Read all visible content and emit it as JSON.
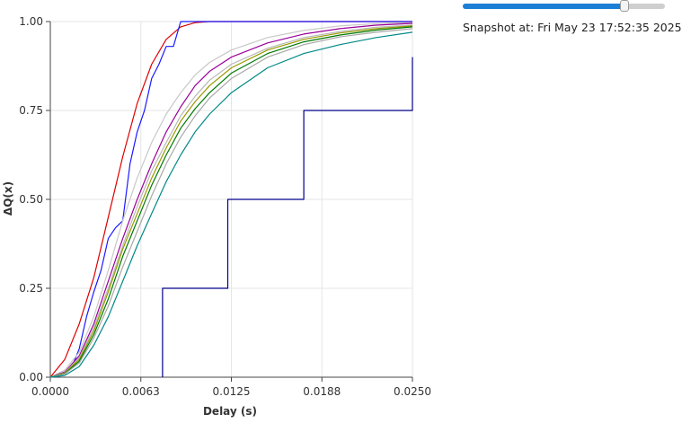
{
  "snapshot": {
    "text": "Snapshot at: Fri May 23 17:52:35 2025",
    "slider_value": 0.8
  },
  "chart_data": {
    "type": "line",
    "title": "",
    "xlabel": "Delay (s)",
    "ylabel": "ΔQ(x)",
    "xlim": [
      0,
      0.025
    ],
    "ylim": [
      0,
      1
    ],
    "x_ticks": [
      0,
      0.00625,
      0.0125,
      0.01875,
      0.025
    ],
    "x_tick_labels": [
      "0.0000",
      "0.0063",
      "0.0125",
      "0.0188",
      "0.0250"
    ],
    "y_ticks": [
      0,
      0.25,
      0.5,
      0.75,
      1
    ],
    "y_tick_labels": [
      "0.00",
      "0.25",
      "0.50",
      "0.75",
      "1.00"
    ],
    "grid": true,
    "series": [
      {
        "color": "#dd0000",
        "step": false,
        "points": [
          [
            0,
            0
          ],
          [
            0.001,
            0.05
          ],
          [
            0.002,
            0.15
          ],
          [
            0.003,
            0.28
          ],
          [
            0.004,
            0.45
          ],
          [
            0.005,
            0.62
          ],
          [
            0.006,
            0.77
          ],
          [
            0.007,
            0.88
          ],
          [
            0.008,
            0.95
          ],
          [
            0.009,
            0.985
          ],
          [
            0.01,
            0.997
          ],
          [
            0.011,
            1
          ],
          [
            0.025,
            1
          ]
        ]
      },
      {
        "color": "#1a1aff",
        "step": false,
        "points": [
          [
            0,
            0
          ],
          [
            0.001,
            0.01
          ],
          [
            0.0015,
            0.03
          ],
          [
            0.002,
            0.08
          ],
          [
            0.0025,
            0.17
          ],
          [
            0.003,
            0.24
          ],
          [
            0.0035,
            0.3
          ],
          [
            0.004,
            0.39
          ],
          [
            0.0045,
            0.42
          ],
          [
            0.005,
            0.44
          ],
          [
            0.0055,
            0.6
          ],
          [
            0.006,
            0.69
          ],
          [
            0.0065,
            0.75
          ],
          [
            0.007,
            0.84
          ],
          [
            0.0075,
            0.88
          ],
          [
            0.008,
            0.93
          ],
          [
            0.0085,
            0.93
          ],
          [
            0.009,
            1
          ],
          [
            0.025,
            1
          ]
        ]
      },
      {
        "color": "#c8c8c8",
        "step": false,
        "points": [
          [
            0,
            0
          ],
          [
            0.001,
            0.02
          ],
          [
            0.002,
            0.07
          ],
          [
            0.003,
            0.17
          ],
          [
            0.004,
            0.3
          ],
          [
            0.005,
            0.44
          ],
          [
            0.006,
            0.56
          ],
          [
            0.007,
            0.66
          ],
          [
            0.008,
            0.74
          ],
          [
            0.009,
            0.8
          ],
          [
            0.01,
            0.85
          ],
          [
            0.011,
            0.885
          ],
          [
            0.0125,
            0.92
          ],
          [
            0.015,
            0.955
          ],
          [
            0.0175,
            0.975
          ],
          [
            0.02,
            0.988
          ],
          [
            0.0225,
            0.994
          ],
          [
            0.025,
            0.997
          ]
        ]
      },
      {
        "color": "#9a009a",
        "step": false,
        "points": [
          [
            0,
            0
          ],
          [
            0.001,
            0.015
          ],
          [
            0.002,
            0.06
          ],
          [
            0.003,
            0.15
          ],
          [
            0.004,
            0.27
          ],
          [
            0.005,
            0.39
          ],
          [
            0.006,
            0.5
          ],
          [
            0.007,
            0.6
          ],
          [
            0.008,
            0.69
          ],
          [
            0.009,
            0.76
          ],
          [
            0.01,
            0.82
          ],
          [
            0.011,
            0.86
          ],
          [
            0.0125,
            0.9
          ],
          [
            0.015,
            0.94
          ],
          [
            0.0175,
            0.965
          ],
          [
            0.02,
            0.98
          ],
          [
            0.0225,
            0.99
          ],
          [
            0.025,
            0.995
          ]
        ]
      },
      {
        "color": "#b8b8b8",
        "step": false,
        "points": [
          [
            0,
            0
          ],
          [
            0.001,
            0.013
          ],
          [
            0.002,
            0.055
          ],
          [
            0.003,
            0.14
          ],
          [
            0.004,
            0.25
          ],
          [
            0.005,
            0.37
          ],
          [
            0.006,
            0.48
          ],
          [
            0.007,
            0.58
          ],
          [
            0.008,
            0.66
          ],
          [
            0.009,
            0.735
          ],
          [
            0.01,
            0.79
          ],
          [
            0.011,
            0.835
          ],
          [
            0.0125,
            0.88
          ],
          [
            0.015,
            0.925
          ],
          [
            0.0175,
            0.955
          ],
          [
            0.02,
            0.972
          ],
          [
            0.0225,
            0.984
          ],
          [
            0.025,
            0.99
          ]
        ]
      },
      {
        "color": "#999900",
        "step": false,
        "points": [
          [
            0,
            0
          ],
          [
            0.001,
            0.012
          ],
          [
            0.002,
            0.05
          ],
          [
            0.003,
            0.13
          ],
          [
            0.004,
            0.24
          ],
          [
            0.005,
            0.36
          ],
          [
            0.006,
            0.46
          ],
          [
            0.007,
            0.56
          ],
          [
            0.008,
            0.645
          ],
          [
            0.009,
            0.72
          ],
          [
            0.01,
            0.775
          ],
          [
            0.011,
            0.82
          ],
          [
            0.0125,
            0.87
          ],
          [
            0.015,
            0.92
          ],
          [
            0.0175,
            0.95
          ],
          [
            0.02,
            0.968
          ],
          [
            0.0225,
            0.98
          ],
          [
            0.025,
            0.988
          ]
        ]
      },
      {
        "color": "#007700",
        "step": false,
        "points": [
          [
            0,
            0
          ],
          [
            0.001,
            0.01
          ],
          [
            0.002,
            0.045
          ],
          [
            0.003,
            0.12
          ],
          [
            0.004,
            0.22
          ],
          [
            0.005,
            0.34
          ],
          [
            0.006,
            0.44
          ],
          [
            0.007,
            0.54
          ],
          [
            0.008,
            0.625
          ],
          [
            0.009,
            0.7
          ],
          [
            0.01,
            0.755
          ],
          [
            0.011,
            0.8
          ],
          [
            0.0125,
            0.855
          ],
          [
            0.015,
            0.91
          ],
          [
            0.0175,
            0.943
          ],
          [
            0.02,
            0.962
          ],
          [
            0.0225,
            0.976
          ],
          [
            0.025,
            0.985
          ]
        ]
      },
      {
        "color": "#a8a8a8",
        "step": false,
        "points": [
          [
            0,
            0
          ],
          [
            0.001,
            0.009
          ],
          [
            0.002,
            0.04
          ],
          [
            0.003,
            0.11
          ],
          [
            0.004,
            0.2
          ],
          [
            0.005,
            0.31
          ],
          [
            0.006,
            0.41
          ],
          [
            0.007,
            0.51
          ],
          [
            0.008,
            0.6
          ],
          [
            0.009,
            0.675
          ],
          [
            0.01,
            0.735
          ],
          [
            0.011,
            0.785
          ],
          [
            0.0125,
            0.84
          ],
          [
            0.015,
            0.9
          ],
          [
            0.0175,
            0.935
          ],
          [
            0.02,
            0.957
          ],
          [
            0.0225,
            0.97
          ],
          [
            0.025,
            0.98
          ]
        ]
      },
      {
        "color": "#008888",
        "step": false,
        "points": [
          [
            0,
            0
          ],
          [
            0.001,
            0.005
          ],
          [
            0.002,
            0.03
          ],
          [
            0.003,
            0.09
          ],
          [
            0.004,
            0.17
          ],
          [
            0.005,
            0.27
          ],
          [
            0.006,
            0.37
          ],
          [
            0.007,
            0.46
          ],
          [
            0.008,
            0.55
          ],
          [
            0.009,
            0.625
          ],
          [
            0.01,
            0.69
          ],
          [
            0.011,
            0.74
          ],
          [
            0.0125,
            0.8
          ],
          [
            0.015,
            0.87
          ],
          [
            0.0175,
            0.91
          ],
          [
            0.02,
            0.935
          ],
          [
            0.0225,
            0.955
          ],
          [
            0.025,
            0.97
          ]
        ]
      },
      {
        "color": "#00008b",
        "step": true,
        "points": [
          [
            0.00775,
            0
          ],
          [
            0.00775,
            0.25
          ],
          [
            0.01225,
            0.25
          ],
          [
            0.01225,
            0.5
          ],
          [
            0.0175,
            0.5
          ],
          [
            0.0175,
            0.75
          ],
          [
            0.025,
            0.75
          ],
          [
            0.025,
            0.9
          ]
        ]
      }
    ]
  }
}
